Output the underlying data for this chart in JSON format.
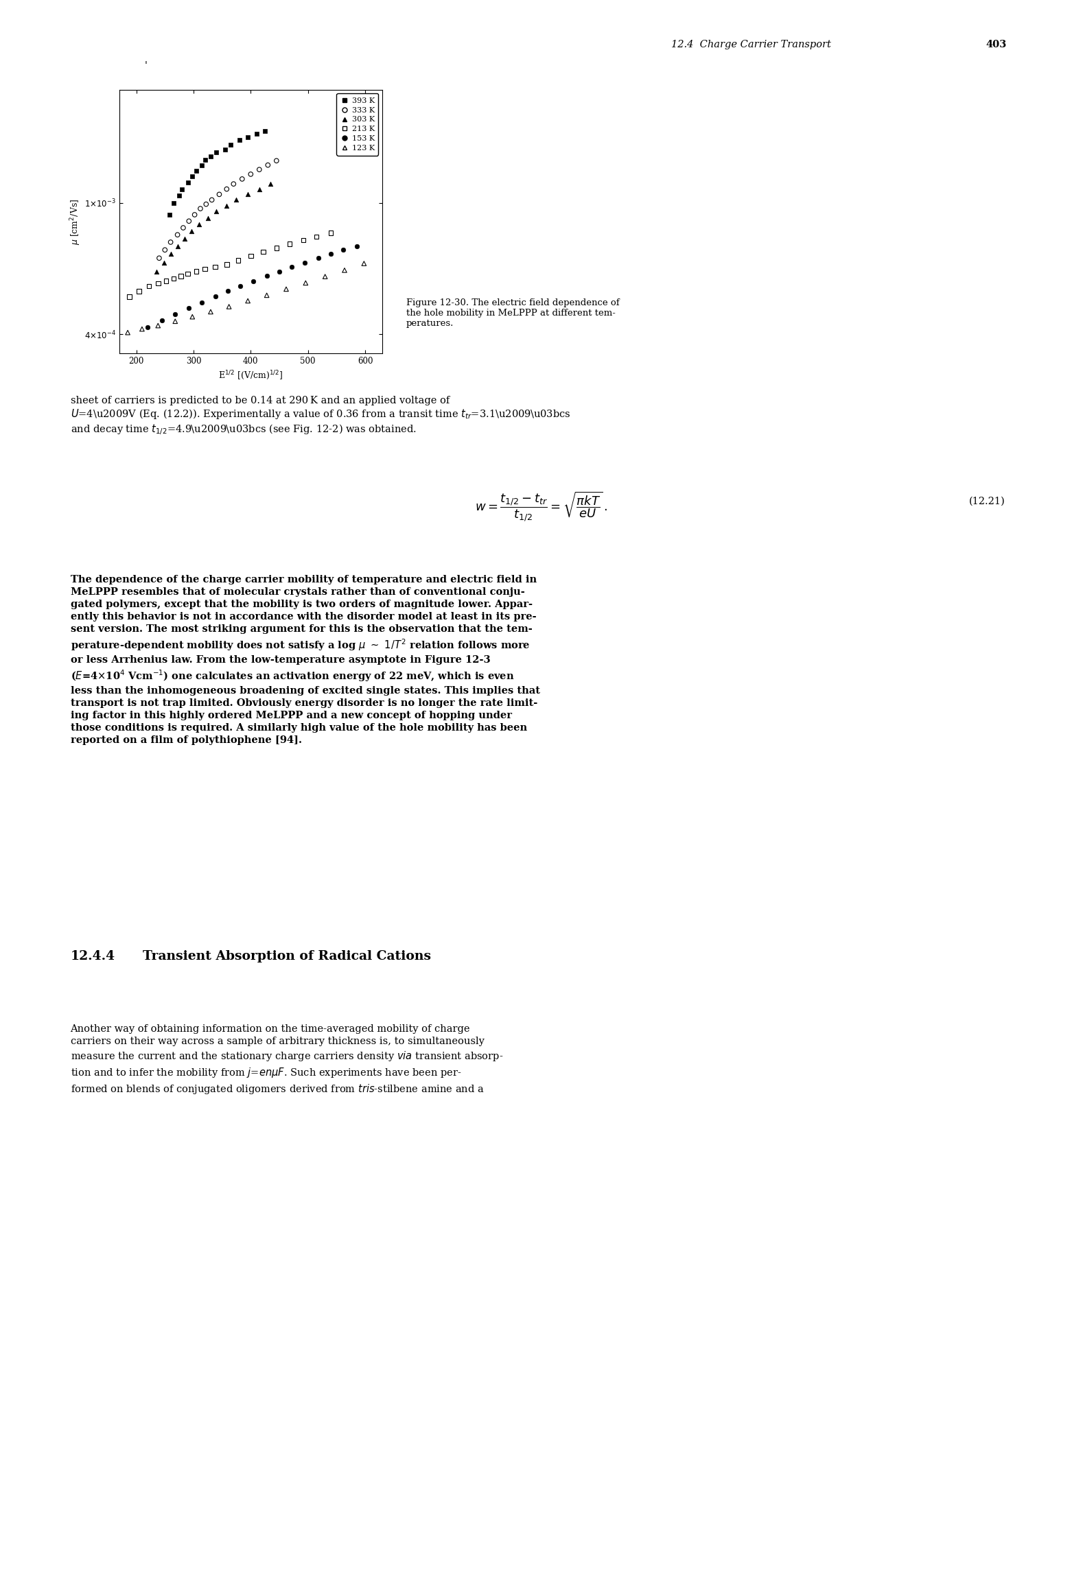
{
  "figure_width": 15.78,
  "figure_height": 22.9,
  "dpi": 100,
  "header_text": "12.4  Charge Carrier Transport",
  "header_page": "403",
  "plot_xlim": [
    170,
    630
  ],
  "plot_ylim_low": 0.00035,
  "plot_ylim_high": 0.0022,
  "xtick_values": [
    200,
    300,
    400,
    500,
    600
  ],
  "ytick_values": [
    0.0004,
    0.001
  ],
  "legend_entries": [
    {
      "label": "393 K",
      "marker": "s",
      "filled": true
    },
    {
      "label": "333 K",
      "marker": "o",
      "filled": false
    },
    {
      "label": "303 K",
      "marker": "^",
      "filled": true
    },
    {
      "label": "213 K",
      "marker": "s",
      "filled": false
    },
    {
      "label": "153 K",
      "marker": "o",
      "filled": true
    },
    {
      "label": "123 K",
      "marker": "^",
      "filled": false
    }
  ],
  "series": {
    "393K": {
      "marker": "s",
      "filled": true,
      "x": [
        258,
        265,
        275,
        280,
        290,
        298,
        305,
        315,
        320,
        330,
        340,
        355,
        365,
        380,
        395,
        410,
        425
      ],
      "y": [
        0.00092,
        0.001,
        0.00105,
        0.0011,
        0.00115,
        0.0012,
        0.00125,
        0.0013,
        0.00135,
        0.00138,
        0.00142,
        0.00145,
        0.0015,
        0.00155,
        0.00158,
        0.00162,
        0.00165
      ]
    },
    "333K": {
      "marker": "o",
      "filled": false,
      "x": [
        240,
        250,
        260,
        272,
        282,
        292,
        302,
        312,
        322,
        332,
        345,
        358,
        370,
        385,
        400,
        415,
        430,
        445
      ],
      "y": [
        0.00068,
        0.00072,
        0.00076,
        0.0008,
        0.00084,
        0.00088,
        0.00092,
        0.00096,
        0.00099,
        0.00102,
        0.00106,
        0.0011,
        0.00114,
        0.00118,
        0.00122,
        0.00126,
        0.0013,
        0.00134
      ]
    },
    "303K": {
      "marker": "^",
      "filled": true,
      "x": [
        235,
        248,
        260,
        272,
        284,
        296,
        310,
        325,
        340,
        358,
        375,
        395,
        415,
        435
      ],
      "y": [
        0.00062,
        0.00066,
        0.0007,
        0.00074,
        0.00078,
        0.00082,
        0.00086,
        0.0009,
        0.00094,
        0.00098,
        0.00102,
        0.00106,
        0.0011,
        0.00114
      ]
    },
    "213K": {
      "marker": "s",
      "filled": false,
      "x": [
        188,
        205,
        222,
        238,
        252,
        265,
        278,
        290,
        305,
        320,
        338,
        358,
        378,
        400,
        422,
        445,
        468,
        492,
        515,
        540
      ],
      "y": [
        0.00052,
        0.00054,
        0.00056,
        0.00057,
        0.00058,
        0.00059,
        0.0006,
        0.00061,
        0.00062,
        0.00063,
        0.00064,
        0.00065,
        0.00067,
        0.00069,
        0.00071,
        0.00073,
        0.00075,
        0.00077,
        0.00079,
        0.00081
      ]
    },
    "153K": {
      "marker": "o",
      "filled": true,
      "x": [
        220,
        245,
        268,
        292,
        315,
        338,
        360,
        382,
        405,
        428,
        450,
        472,
        495,
        518,
        540,
        562,
        585
      ],
      "y": [
        0.00042,
        0.00044,
        0.00046,
        0.00048,
        0.0005,
        0.00052,
        0.00054,
        0.00056,
        0.00058,
        0.0006,
        0.00062,
        0.00064,
        0.00066,
        0.00068,
        0.0007,
        0.00072,
        0.00074
      ]
    },
    "123K": {
      "marker": "^",
      "filled": false,
      "x": [
        185,
        210,
        238,
        268,
        298,
        330,
        362,
        395,
        428,
        462,
        496,
        530,
        564,
        598
      ],
      "y": [
        0.000405,
        0.000415,
        0.000425,
        0.000438,
        0.000452,
        0.000468,
        0.000485,
        0.000505,
        0.000525,
        0.000548,
        0.000572,
        0.000598,
        0.000625,
        0.000655
      ]
    }
  }
}
